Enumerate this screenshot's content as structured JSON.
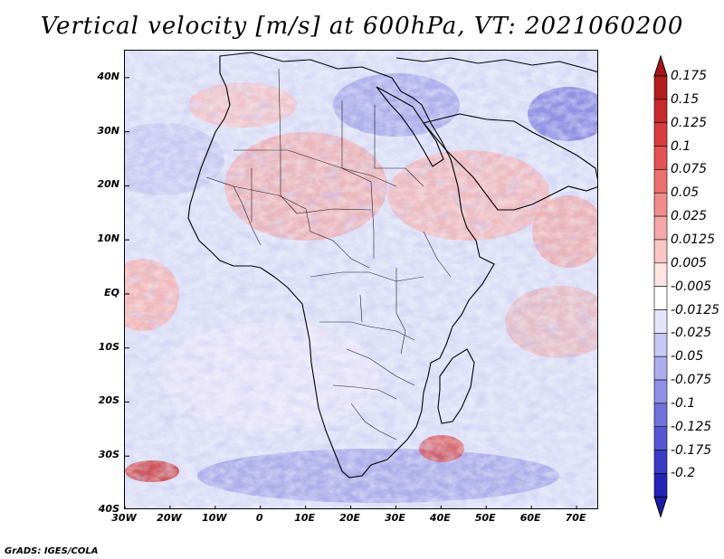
{
  "title": "Vertical velocity [m/s] at 600hPa, VT: 2021060200",
  "credit": "GrADS: IGES/COLA",
  "map": {
    "projection": "lat-lon",
    "lon_range": [
      -30,
      75
    ],
    "lat_range": [
      -40,
      45
    ],
    "lat_ticks": [
      {
        "value": 40,
        "label": "40N"
      },
      {
        "value": 30,
        "label": "30N"
      },
      {
        "value": 20,
        "label": "20N"
      },
      {
        "value": 10,
        "label": "10N"
      },
      {
        "value": 0,
        "label": "EQ"
      },
      {
        "value": -10,
        "label": "10S"
      },
      {
        "value": -20,
        "label": "20S"
      },
      {
        "value": -30,
        "label": "30S"
      },
      {
        "value": -40,
        "label": "40S"
      }
    ],
    "lon_ticks": [
      {
        "value": -30,
        "label": "30W"
      },
      {
        "value": -20,
        "label": "20W"
      },
      {
        "value": -10,
        "label": "10W"
      },
      {
        "value": 0,
        "label": "0"
      },
      {
        "value": 10,
        "label": "10E"
      },
      {
        "value": 20,
        "label": "20E"
      },
      {
        "value": 30,
        "label": "30E"
      },
      {
        "value": 40,
        "label": "40E"
      },
      {
        "value": 50,
        "label": "50E"
      },
      {
        "value": 60,
        "label": "60E"
      },
      {
        "value": 70,
        "label": "70E"
      }
    ]
  },
  "colorbar": {
    "levels": [
      {
        "label": "0.175",
        "color": "#b21d1d"
      },
      {
        "label": "0.15",
        "color": "#c72a2a"
      },
      {
        "label": "0.125",
        "color": "#d83c3c"
      },
      {
        "label": "0.1",
        "color": "#e45454"
      },
      {
        "label": "0.075",
        "color": "#ec7070"
      },
      {
        "label": "0.05",
        "color": "#f18c8c"
      },
      {
        "label": "0.025",
        "color": "#f5a8a8"
      },
      {
        "label": "0.0125",
        "color": "#f9c6c6"
      },
      {
        "label": "0.005",
        "color": "#fde4e4"
      },
      {
        "label": "-0.005",
        "color": "#ffffff"
      },
      {
        "label": "-0.0125",
        "color": "#e4e4fb"
      },
      {
        "label": "-0.025",
        "color": "#c8c8f4"
      },
      {
        "label": "-0.05",
        "color": "#adadee"
      },
      {
        "label": "-0.075",
        "color": "#9090e6"
      },
      {
        "label": "-0.1",
        "color": "#7272dc"
      },
      {
        "label": "-0.125",
        "color": "#5656d2"
      },
      {
        "label": "-0.175",
        "color": "#3a3ac4"
      },
      {
        "label": "-0.2",
        "color": "#2323b4"
      }
    ],
    "top_color": "#a61616",
    "bottom_color": "#1c1ca8"
  }
}
